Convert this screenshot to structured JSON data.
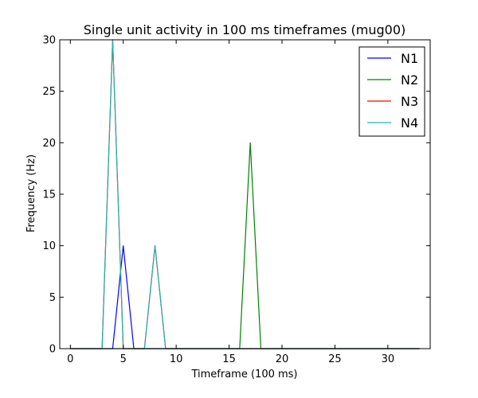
{
  "chart_data": {
    "type": "line",
    "title": "Single unit activity in 100 ms timeframes (mug00)",
    "xlabel": "Timeframe (100 ms)",
    "ylabel": "Frequency (Hz)",
    "xlim": [
      -1,
      34
    ],
    "ylim": [
      0,
      30
    ],
    "xticks": [
      0,
      5,
      10,
      15,
      20,
      25,
      30
    ],
    "yticks": [
      0,
      5,
      10,
      15,
      20,
      25,
      30
    ],
    "grid": false,
    "legend_position": "top-right",
    "x": [
      0,
      1,
      2,
      3,
      4,
      5,
      6,
      7,
      8,
      9,
      10,
      11,
      12,
      13,
      14,
      15,
      16,
      17,
      18,
      19,
      20,
      21,
      22,
      23,
      24,
      25,
      26,
      27,
      28,
      29,
      30,
      31,
      32,
      33
    ],
    "series": [
      {
        "name": "N1",
        "color": "#0000ff",
        "values": [
          0,
          0,
          0,
          0,
          0,
          10,
          0,
          0,
          0,
          0,
          0,
          0,
          0,
          0,
          0,
          0,
          0,
          0,
          0,
          0,
          0,
          0,
          0,
          0,
          0,
          0,
          0,
          0,
          0,
          0,
          0,
          0,
          0,
          0
        ]
      },
      {
        "name": "N2",
        "color": "#008000",
        "values": [
          0,
          0,
          0,
          0,
          0,
          0,
          0,
          0,
          0,
          0,
          0,
          0,
          0,
          0,
          0,
          0,
          0,
          20,
          0,
          0,
          0,
          0,
          0,
          0,
          0,
          0,
          0,
          0,
          0,
          0,
          0,
          0,
          0,
          0
        ]
      },
      {
        "name": "N3",
        "color": "#ff0000",
        "values": [
          0,
          0,
          0,
          0,
          30,
          0,
          0,
          0,
          10,
          0,
          0,
          0,
          0,
          0,
          0,
          0,
          0,
          0,
          0,
          0,
          0,
          0,
          0,
          0,
          0,
          0,
          0,
          0,
          0,
          0,
          0,
          0,
          0,
          0
        ]
      },
      {
        "name": "N4",
        "color": "#20b2aa",
        "values": [
          0,
          0,
          0,
          0,
          30,
          0,
          0,
          0,
          10,
          0,
          0,
          0,
          0,
          0,
          0,
          0,
          0,
          0,
          0,
          0,
          0,
          0,
          0,
          0,
          0,
          0,
          0,
          0,
          0,
          0,
          0,
          0,
          0,
          0
        ]
      }
    ]
  }
}
